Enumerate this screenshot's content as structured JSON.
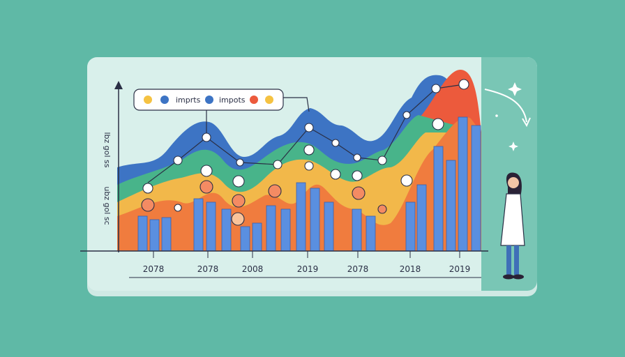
{
  "legend": {
    "items": [
      "imprts",
      "impots"
    ]
  },
  "y_axis": {
    "labels": [
      "lbz gol ss",
      "ubz gol sc"
    ]
  },
  "x_axis": {
    "labels": [
      "2078",
      "2078",
      "2008",
      "2019",
      "2078",
      "2018",
      "2019"
    ]
  }
}
